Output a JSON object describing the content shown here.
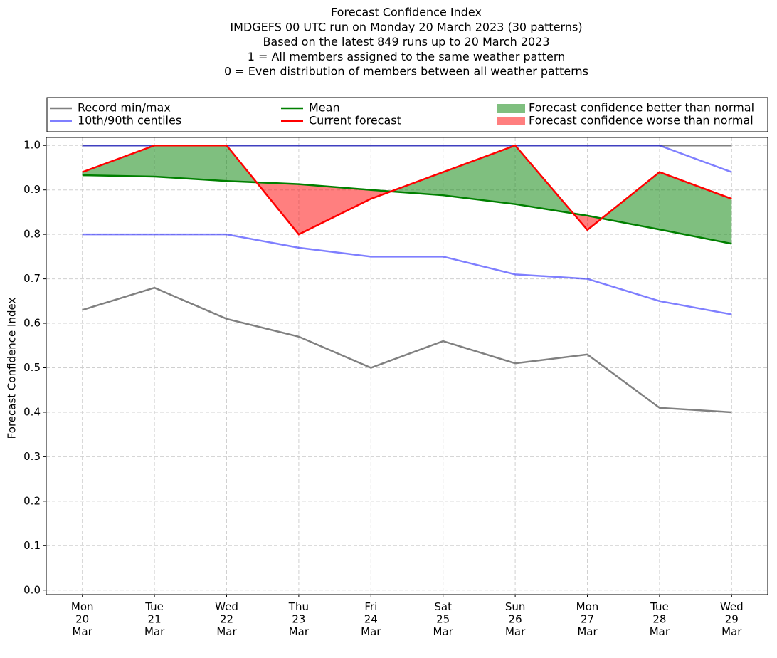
{
  "chart_data": {
    "type": "line",
    "title": [
      "Forecast Confidence Index",
      "IMDGEFS 00 UTC run on Monday 20 March 2023 (30 patterns)",
      "Based on the latest 849 runs up to 20 March 2023",
      "1 = All members assigned to the same weather pattern",
      "0 = Even distribution of members between all weather patterns"
    ],
    "y_label": "Forecast Confidence Index",
    "categories": [
      [
        "Mon",
        "20",
        "Mar"
      ],
      [
        "Tue",
        "21",
        "Mar"
      ],
      [
        "Wed",
        "22",
        "Mar"
      ],
      [
        "Thu",
        "23",
        "Mar"
      ],
      [
        "Fri",
        "24",
        "Mar"
      ],
      [
        "Sat",
        "25",
        "Mar"
      ],
      [
        "Sun",
        "26",
        "Mar"
      ],
      [
        "Mon",
        "27",
        "Mar"
      ],
      [
        "Tue",
        "28",
        "Mar"
      ],
      [
        "Wed",
        "29",
        "Mar"
      ]
    ],
    "series": [
      {
        "name": "Record min/max",
        "color": "#808080",
        "alpha": 1,
        "min": [
          0.63,
          0.68,
          0.61,
          0.57,
          0.5,
          0.56,
          0.51,
          0.53,
          0.41,
          0.4
        ],
        "max": [
          1.0,
          1.0,
          1.0,
          1.0,
          1.0,
          1.0,
          1.0,
          1.0,
          1.0,
          1.0
        ]
      },
      {
        "name": "10th/90th centiles",
        "color": "blue",
        "alpha": 0.5,
        "min": [
          0.8,
          0.8,
          0.8,
          0.77,
          0.75,
          0.75,
          0.71,
          0.7,
          0.65,
          0.62
        ],
        "max": [
          1.0,
          1.0,
          1.0,
          1.0,
          1.0,
          1.0,
          1.0,
          1.0,
          1.0,
          0.94
        ]
      },
      {
        "name": "Mean",
        "color": "green",
        "alpha": 1,
        "values": [
          0.933,
          0.93,
          0.92,
          0.913,
          0.9,
          0.888,
          0.868,
          0.842,
          0.811,
          0.779
        ]
      },
      {
        "name": "Current forecast",
        "color": "red",
        "alpha": 1,
        "values": [
          0.94,
          1.0,
          1.0,
          0.8,
          0.88,
          0.94,
          1.0,
          0.81,
          0.94,
          0.88
        ]
      }
    ],
    "fills": [
      {
        "name": "Forecast confidence better than normal",
        "color": "green",
        "alpha": 0.5
      },
      {
        "name": "Forecast confidence worse than normal",
        "color": "red",
        "alpha": 0.5
      }
    ],
    "ylim": [
      -0.01,
      1.018
    ],
    "yticks": [
      {
        "value": 0,
        "label": "0.0"
      },
      0.1,
      0.2,
      0.3,
      0.4,
      0.5,
      0.6,
      0.7,
      0.8,
      0.9,
      {
        "value": 1,
        "label": "1.0"
      }
    ],
    "grid": true,
    "legend": "top"
  }
}
